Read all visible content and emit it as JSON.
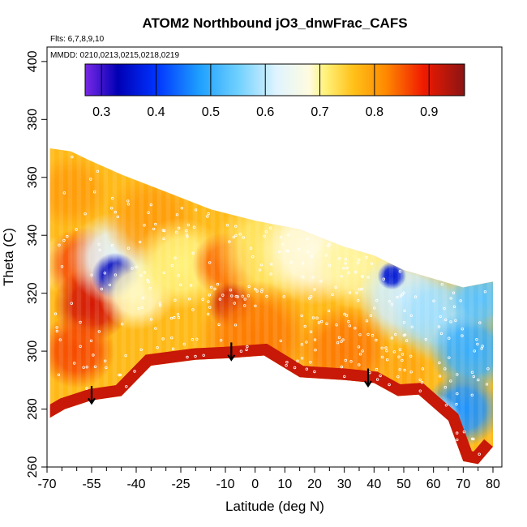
{
  "chart_data": {
    "type": "heatmap",
    "title": "ATOM2 Northbound jO3_dnwFrac_CAFS",
    "annotations": {
      "flights": "Flts: 6,7,8,9,10",
      "mmdd": "MMDD: 0210,0213,0215,0218,0219"
    },
    "xlabel": "Latitude (deg N)",
    "ylabel": "Theta (C)",
    "xlim": [
      -70,
      83
    ],
    "ylim": [
      260,
      405
    ],
    "x_ticks": [
      -70,
      -55,
      -40,
      -25,
      -10,
      0,
      10,
      20,
      30,
      40,
      50,
      60,
      70,
      80
    ],
    "x_minor_ticks": [
      -65,
      -60,
      -50,
      -45,
      -35,
      -30,
      -20,
      -15,
      -5,
      5,
      15,
      25,
      35,
      45,
      55,
      65,
      75
    ],
    "y_ticks": [
      260,
      280,
      300,
      320,
      340,
      360,
      380,
      400
    ],
    "colorbar": {
      "range": [
        0.27,
        0.965
      ],
      "ticks": [
        0.3,
        0.4,
        0.5,
        0.6,
        0.7,
        0.8,
        0.9
      ],
      "stops": [
        {
          "v": 0.27,
          "c": "#7a28e6"
        },
        {
          "v": 0.33,
          "c": "#0000b4"
        },
        {
          "v": 0.4,
          "c": "#0033ff"
        },
        {
          "v": 0.48,
          "c": "#1fa0ff"
        },
        {
          "v": 0.55,
          "c": "#6fd0ff"
        },
        {
          "v": 0.62,
          "c": "#dff4ff"
        },
        {
          "v": 0.68,
          "c": "#fffbe0"
        },
        {
          "v": 0.71,
          "c": "#fff27a"
        },
        {
          "v": 0.76,
          "c": "#ffc21a"
        },
        {
          "v": 0.82,
          "c": "#ff8a00"
        },
        {
          "v": 0.89,
          "c": "#f01a00"
        },
        {
          "v": 0.965,
          "c": "#8a1414"
        }
      ]
    },
    "top_boundary": [
      [
        -69,
        370
      ],
      [
        -62,
        369
      ],
      [
        -56,
        366
      ],
      [
        -45,
        361
      ],
      [
        -30,
        355
      ],
      [
        -15,
        349
      ],
      [
        0,
        345
      ],
      [
        15,
        342
      ],
      [
        30,
        336
      ],
      [
        40,
        333
      ],
      [
        50,
        328
      ],
      [
        60,
        325
      ],
      [
        70,
        322
      ],
      [
        80,
        324
      ]
    ],
    "bottom_boundary": [
      [
        -69,
        277
      ],
      [
        -64,
        280
      ],
      [
        -55,
        283
      ],
      [
        -45,
        284.5
      ],
      [
        -35,
        295
      ],
      [
        -20,
        297
      ],
      [
        -10,
        297.5
      ],
      [
        3,
        298.5
      ],
      [
        15,
        291
      ],
      [
        30,
        290
      ],
      [
        40,
        289
      ],
      [
        48,
        284.5
      ],
      [
        55,
        285
      ],
      [
        65,
        276
      ],
      [
        70,
        262
      ],
      [
        75,
        261
      ],
      [
        80,
        267
      ]
    ],
    "value_field": [
      {
        "x": 0,
        "y": 315,
        "v": 0.77
      },
      {
        "x": -68,
        "y": 330,
        "v": 0.72,
        "r": 6
      },
      {
        "x": -62,
        "y": 355,
        "v": 0.8,
        "r": 8
      },
      {
        "x": -58,
        "y": 330,
        "v": 0.86,
        "r": 8
      },
      {
        "x": -55,
        "y": 316,
        "v": 0.91,
        "r": 8
      },
      {
        "x": -60,
        "y": 300,
        "v": 0.86,
        "r": 8
      },
      {
        "x": -47,
        "y": 332,
        "v": 0.63,
        "r": 10
      },
      {
        "x": -47,
        "y": 326,
        "v": 0.34,
        "r": 5
      },
      {
        "x": -40,
        "y": 320,
        "v": 0.69,
        "r": 8
      },
      {
        "x": -35,
        "y": 345,
        "v": 0.8,
        "r": 10
      },
      {
        "x": -25,
        "y": 330,
        "v": 0.71,
        "r": 10
      },
      {
        "x": -10,
        "y": 330,
        "v": 0.84,
        "r": 7
      },
      {
        "x": -8,
        "y": 316,
        "v": 0.92,
        "r": 5
      },
      {
        "x": 5,
        "y": 335,
        "v": 0.72,
        "r": 12
      },
      {
        "x": 20,
        "y": 335,
        "v": 0.68,
        "r": 12
      },
      {
        "x": 35,
        "y": 330,
        "v": 0.7,
        "r": 10
      },
      {
        "x": 50,
        "y": 318,
        "v": 0.61,
        "r": 10
      },
      {
        "x": 62,
        "y": 312,
        "v": 0.58,
        "r": 10
      },
      {
        "x": 73,
        "y": 300,
        "v": 0.5,
        "r": 9
      },
      {
        "x": 76,
        "y": 318,
        "v": 0.53,
        "r": 7
      },
      {
        "x": 70,
        "y": 280,
        "v": 0.47,
        "r": 8
      },
      {
        "x": 60,
        "y": 276,
        "v": 0.65,
        "r": 6
      },
      {
        "x": 50,
        "y": 293,
        "v": 0.79,
        "r": 6
      },
      {
        "x": 46,
        "y": 326,
        "v": 0.36,
        "r": 3
      },
      {
        "x": 0,
        "y": 305,
        "v": 0.83,
        "r": 12
      },
      {
        "x": 30,
        "y": 300,
        "v": 0.83,
        "r": 10
      }
    ],
    "bottom_band": {
      "width": 4,
      "v": 0.92
    },
    "arrows": [
      {
        "x": -55,
        "y_top": 288,
        "y_tip": 282
      },
      {
        "x": -8,
        "y_top": 303,
        "y_tip": 297
      },
      {
        "x": 38,
        "y_top": 294,
        "y_tip": 288
      }
    ]
  }
}
